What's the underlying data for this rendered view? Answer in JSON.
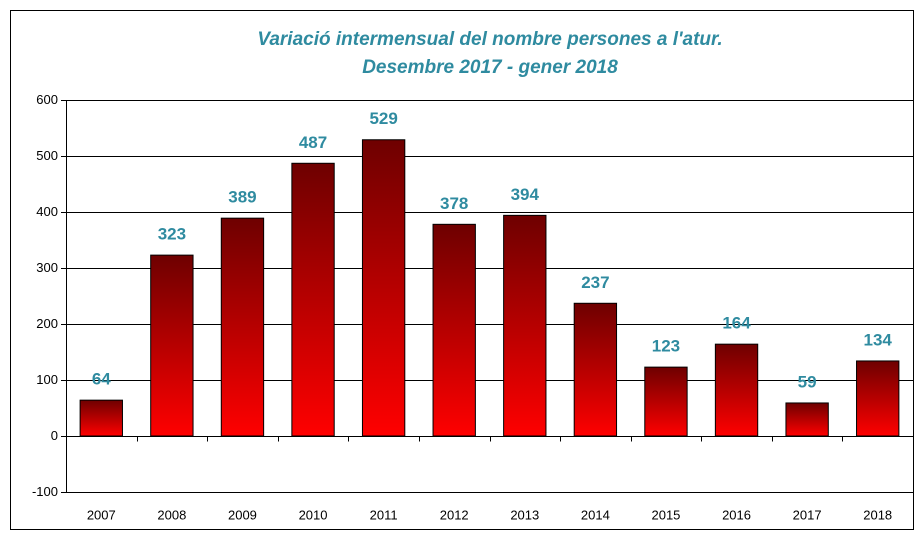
{
  "chart_data": {
    "type": "bar",
    "title": "Variació intermensual del nombre persones a l'atur.",
    "subtitle": "Desembre 2017 - gener 2018",
    "categories": [
      "2007",
      "2008",
      "2009",
      "2010",
      "2011",
      "2012",
      "2013",
      "2014",
      "2015",
      "2016",
      "2017",
      "2018"
    ],
    "values": [
      64,
      323,
      389,
      487,
      529,
      378,
      394,
      237,
      123,
      164,
      59,
      134
    ],
    "color": "#ff0000",
    "ylim": [
      -100,
      600
    ],
    "yticks": [
      -100,
      0,
      100,
      200,
      300,
      400,
      500,
      600
    ],
    "grid": true
  }
}
